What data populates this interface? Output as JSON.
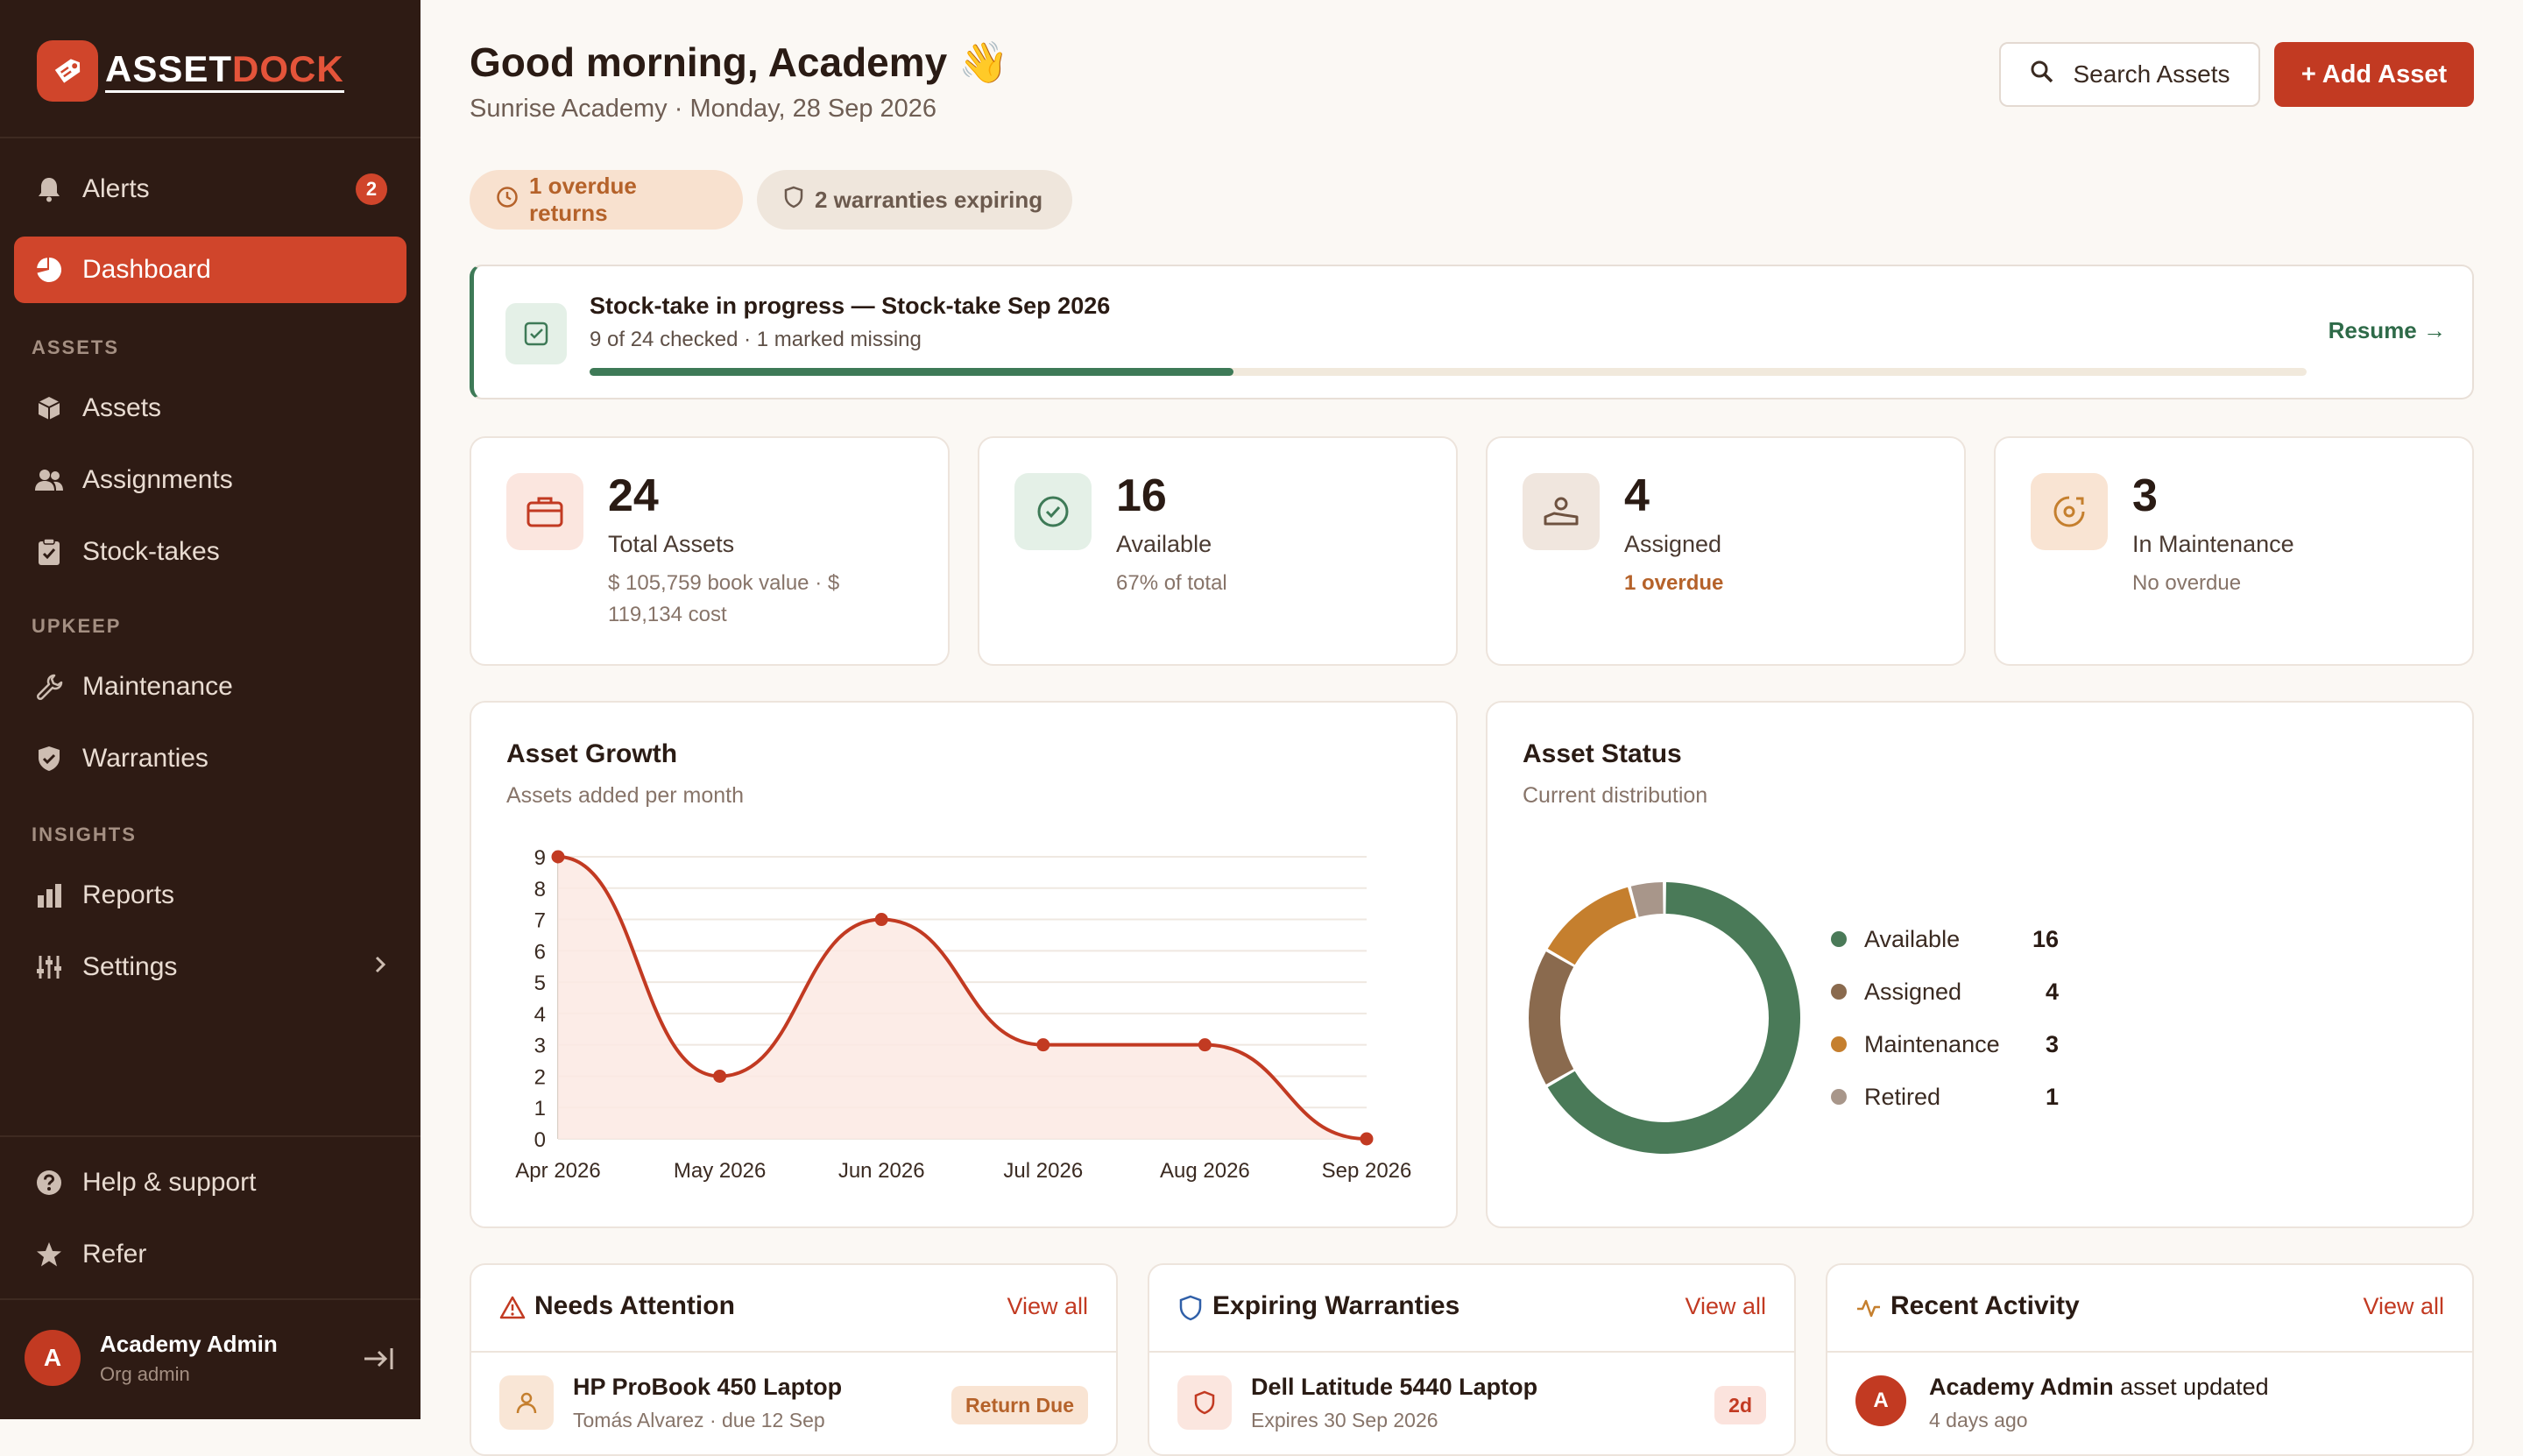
{
  "brand": {
    "name_part1": "ASSET",
    "name_part2": "DOCK"
  },
  "sidebar": {
    "alerts": {
      "label": "Alerts",
      "badge": "2"
    },
    "dashboard": {
      "label": "Dashboard"
    },
    "sections": {
      "assets": "ASSETS",
      "upkeep": "UPKEEP",
      "insights": "INSIGHTS"
    },
    "items": {
      "assets": "Assets",
      "assignments": "Assignments",
      "stocktakes": "Stock-takes",
      "maintenance": "Maintenance",
      "warranties": "Warranties",
      "reports": "Reports",
      "settings": "Settings"
    },
    "footer": {
      "help": "Help & support",
      "refer": "Refer"
    },
    "user": {
      "initial": "A",
      "name": "Academy Admin",
      "role": "Org admin"
    }
  },
  "header": {
    "greeting": "Good morning, Academy 👋",
    "subline": "Sunrise Academy · Monday, 28 Sep 2026",
    "search_label": "Search Assets",
    "add_label": "+ Add Asset"
  },
  "pills": {
    "overdue": "1 overdue returns",
    "warranties": "2 warranties expiring"
  },
  "stocktake": {
    "title": "Stock-take in progress — Stock-take Sep 2026",
    "subtitle": "9 of 24 checked · 1 marked missing",
    "progress": 0.375,
    "resume": "Resume →"
  },
  "stats": [
    {
      "value": "24",
      "label": "Total Assets",
      "sub": "$ 105,759 book value · $ 119,134 cost"
    },
    {
      "value": "16",
      "label": "Available",
      "sub": "67% of total"
    },
    {
      "value": "4",
      "label": "Assigned",
      "sub": "1 overdue"
    },
    {
      "value": "3",
      "label": "In Maintenance",
      "sub": "No overdue"
    }
  ],
  "growth": {
    "title": "Asset Growth",
    "subtitle": "Assets added per month"
  },
  "status": {
    "title": "Asset Status",
    "subtitle": "Current distribution"
  },
  "chart_data": [
    {
      "type": "area",
      "title": "Asset Growth",
      "subtitle": "Assets added per month",
      "categories": [
        "Apr 2026",
        "May 2026",
        "Jun 2026",
        "Jul 2026",
        "Aug 2026",
        "Sep 2026"
      ],
      "values": [
        9,
        2,
        7,
        3,
        3,
        0
      ],
      "ylim": [
        0,
        9
      ],
      "yticks": [
        "0",
        "1",
        "2",
        "3",
        "4",
        "5",
        "6",
        "7",
        "8",
        "9"
      ],
      "grid": true,
      "color": "#C23A22",
      "fill": "#FBE9E3"
    },
    {
      "type": "pie",
      "title": "Asset Status",
      "subtitle": "Current distribution",
      "donut": true,
      "legend_position": "right",
      "categories": [
        "Available",
        "Assigned",
        "Maintenance",
        "Retired"
      ],
      "values": [
        16,
        4,
        3,
        1
      ],
      "colors": [
        "#4A7A58",
        "#8A6A4E",
        "#C57F2E",
        "#A8968A"
      ]
    }
  ],
  "panels": {
    "attention": {
      "title": "Needs Attention",
      "link": "View all",
      "row_title": "HP ProBook 450 Laptop",
      "row_sub": "Tomás Alvarez · due 12 Sep",
      "tag": "Return Due"
    },
    "warranties": {
      "title": "Expiring Warranties",
      "link": "View all",
      "row_title": "Dell Latitude 5440 Laptop",
      "row_sub": "Expires 30 Sep 2026",
      "tag": "2d"
    },
    "activity": {
      "title": "Recent Activity",
      "link": "View all",
      "row_initial": "A",
      "row_actor": "Academy Admin",
      "row_action": " asset updated",
      "row_sub": "4 days ago"
    }
  },
  "colors": {
    "accent": "#C23A22",
    "sidebar": "#2E1B14",
    "success": "#3E7A57",
    "warning": "#B5622A"
  }
}
